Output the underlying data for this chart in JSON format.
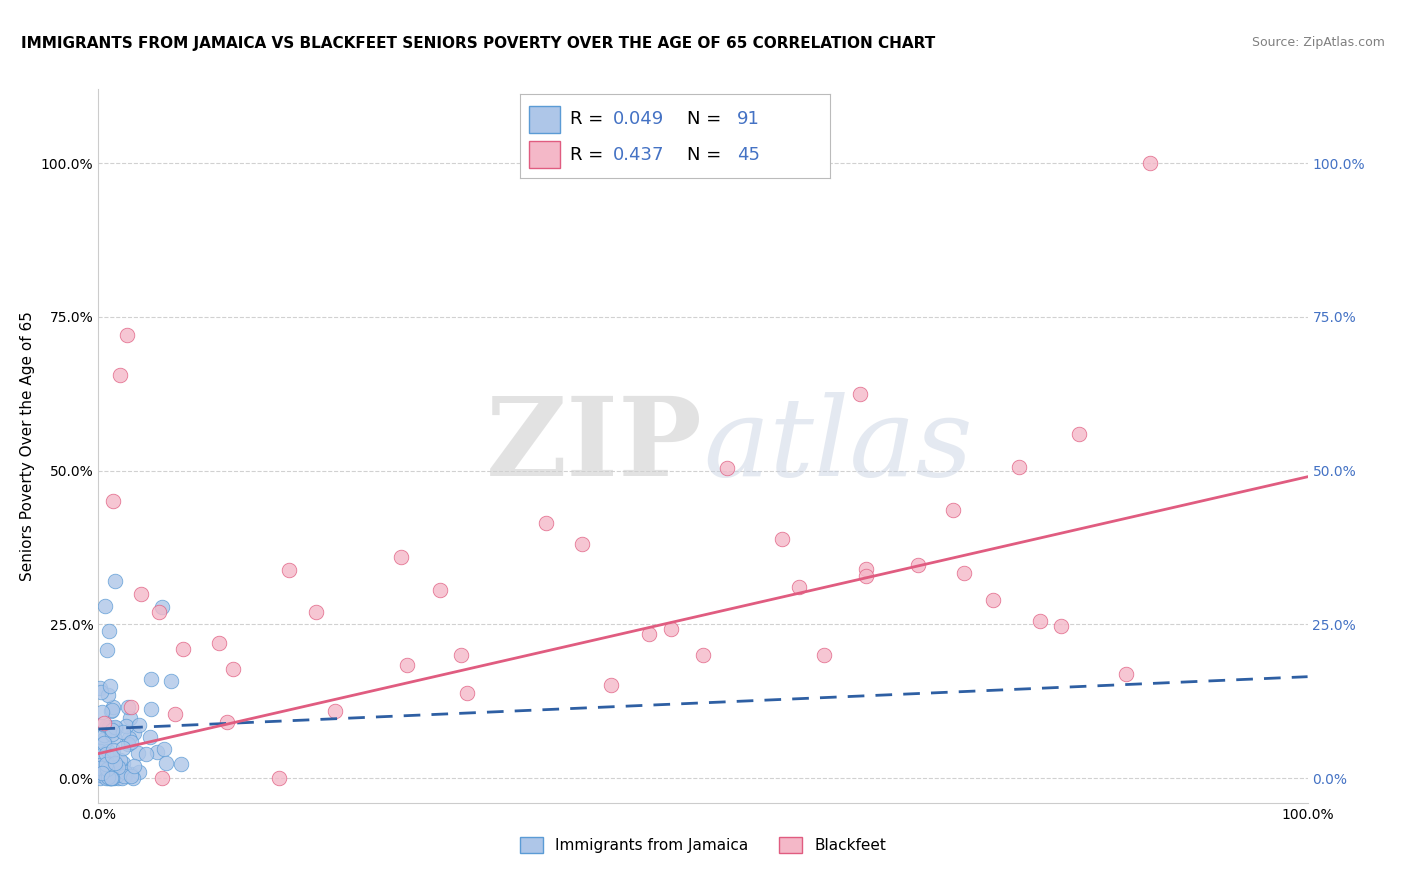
{
  "title": "IMMIGRANTS FROM JAMAICA VS BLACKFEET SENIORS POVERTY OVER THE AGE OF 65 CORRELATION CHART",
  "source": "Source: ZipAtlas.com",
  "ylabel": "Seniors Poverty Over the Age of 65",
  "xlim": [
    0,
    1.0
  ],
  "ylim": [
    -0.04,
    1.12
  ],
  "ytick_vals": [
    0.0,
    0.25,
    0.5,
    0.75,
    1.0
  ],
  "ytick_labels": [
    "0.0%",
    "25.0%",
    "50.0%",
    "75.0%",
    "100.0%"
  ],
  "xtick_vals": [
    0.0,
    1.0
  ],
  "xtick_labels": [
    "0.0%",
    "100.0%"
  ],
  "grid_color": "#cccccc",
  "background_color": "#ffffff",
  "watermark_zip": "ZIP",
  "watermark_atlas": "atlas",
  "series": [
    {
      "name": "Immigrants from Jamaica",
      "color": "#aec6e8",
      "edge_color": "#5b9bd5",
      "trend_color": "#2e5fa3",
      "trend_dash": "dashed",
      "R": 0.049,
      "N": 91,
      "trend_x0": 0.0,
      "trend_y0": 0.08,
      "trend_x1": 1.0,
      "trend_y1": 0.165
    },
    {
      "name": "Blackfeet",
      "color": "#f4b8c8",
      "edge_color": "#e05c80",
      "trend_color": "#e05c80",
      "trend_dash": "solid",
      "R": 0.437,
      "N": 45,
      "trend_x0": 0.0,
      "trend_y0": 0.04,
      "trend_x1": 1.0,
      "trend_y1": 0.49
    }
  ],
  "legend_r_color": "#4472c4",
  "legend_n_color": "#4472c4",
  "title_fontsize": 11,
  "axis_label_fontsize": 11,
  "tick_fontsize": 10
}
